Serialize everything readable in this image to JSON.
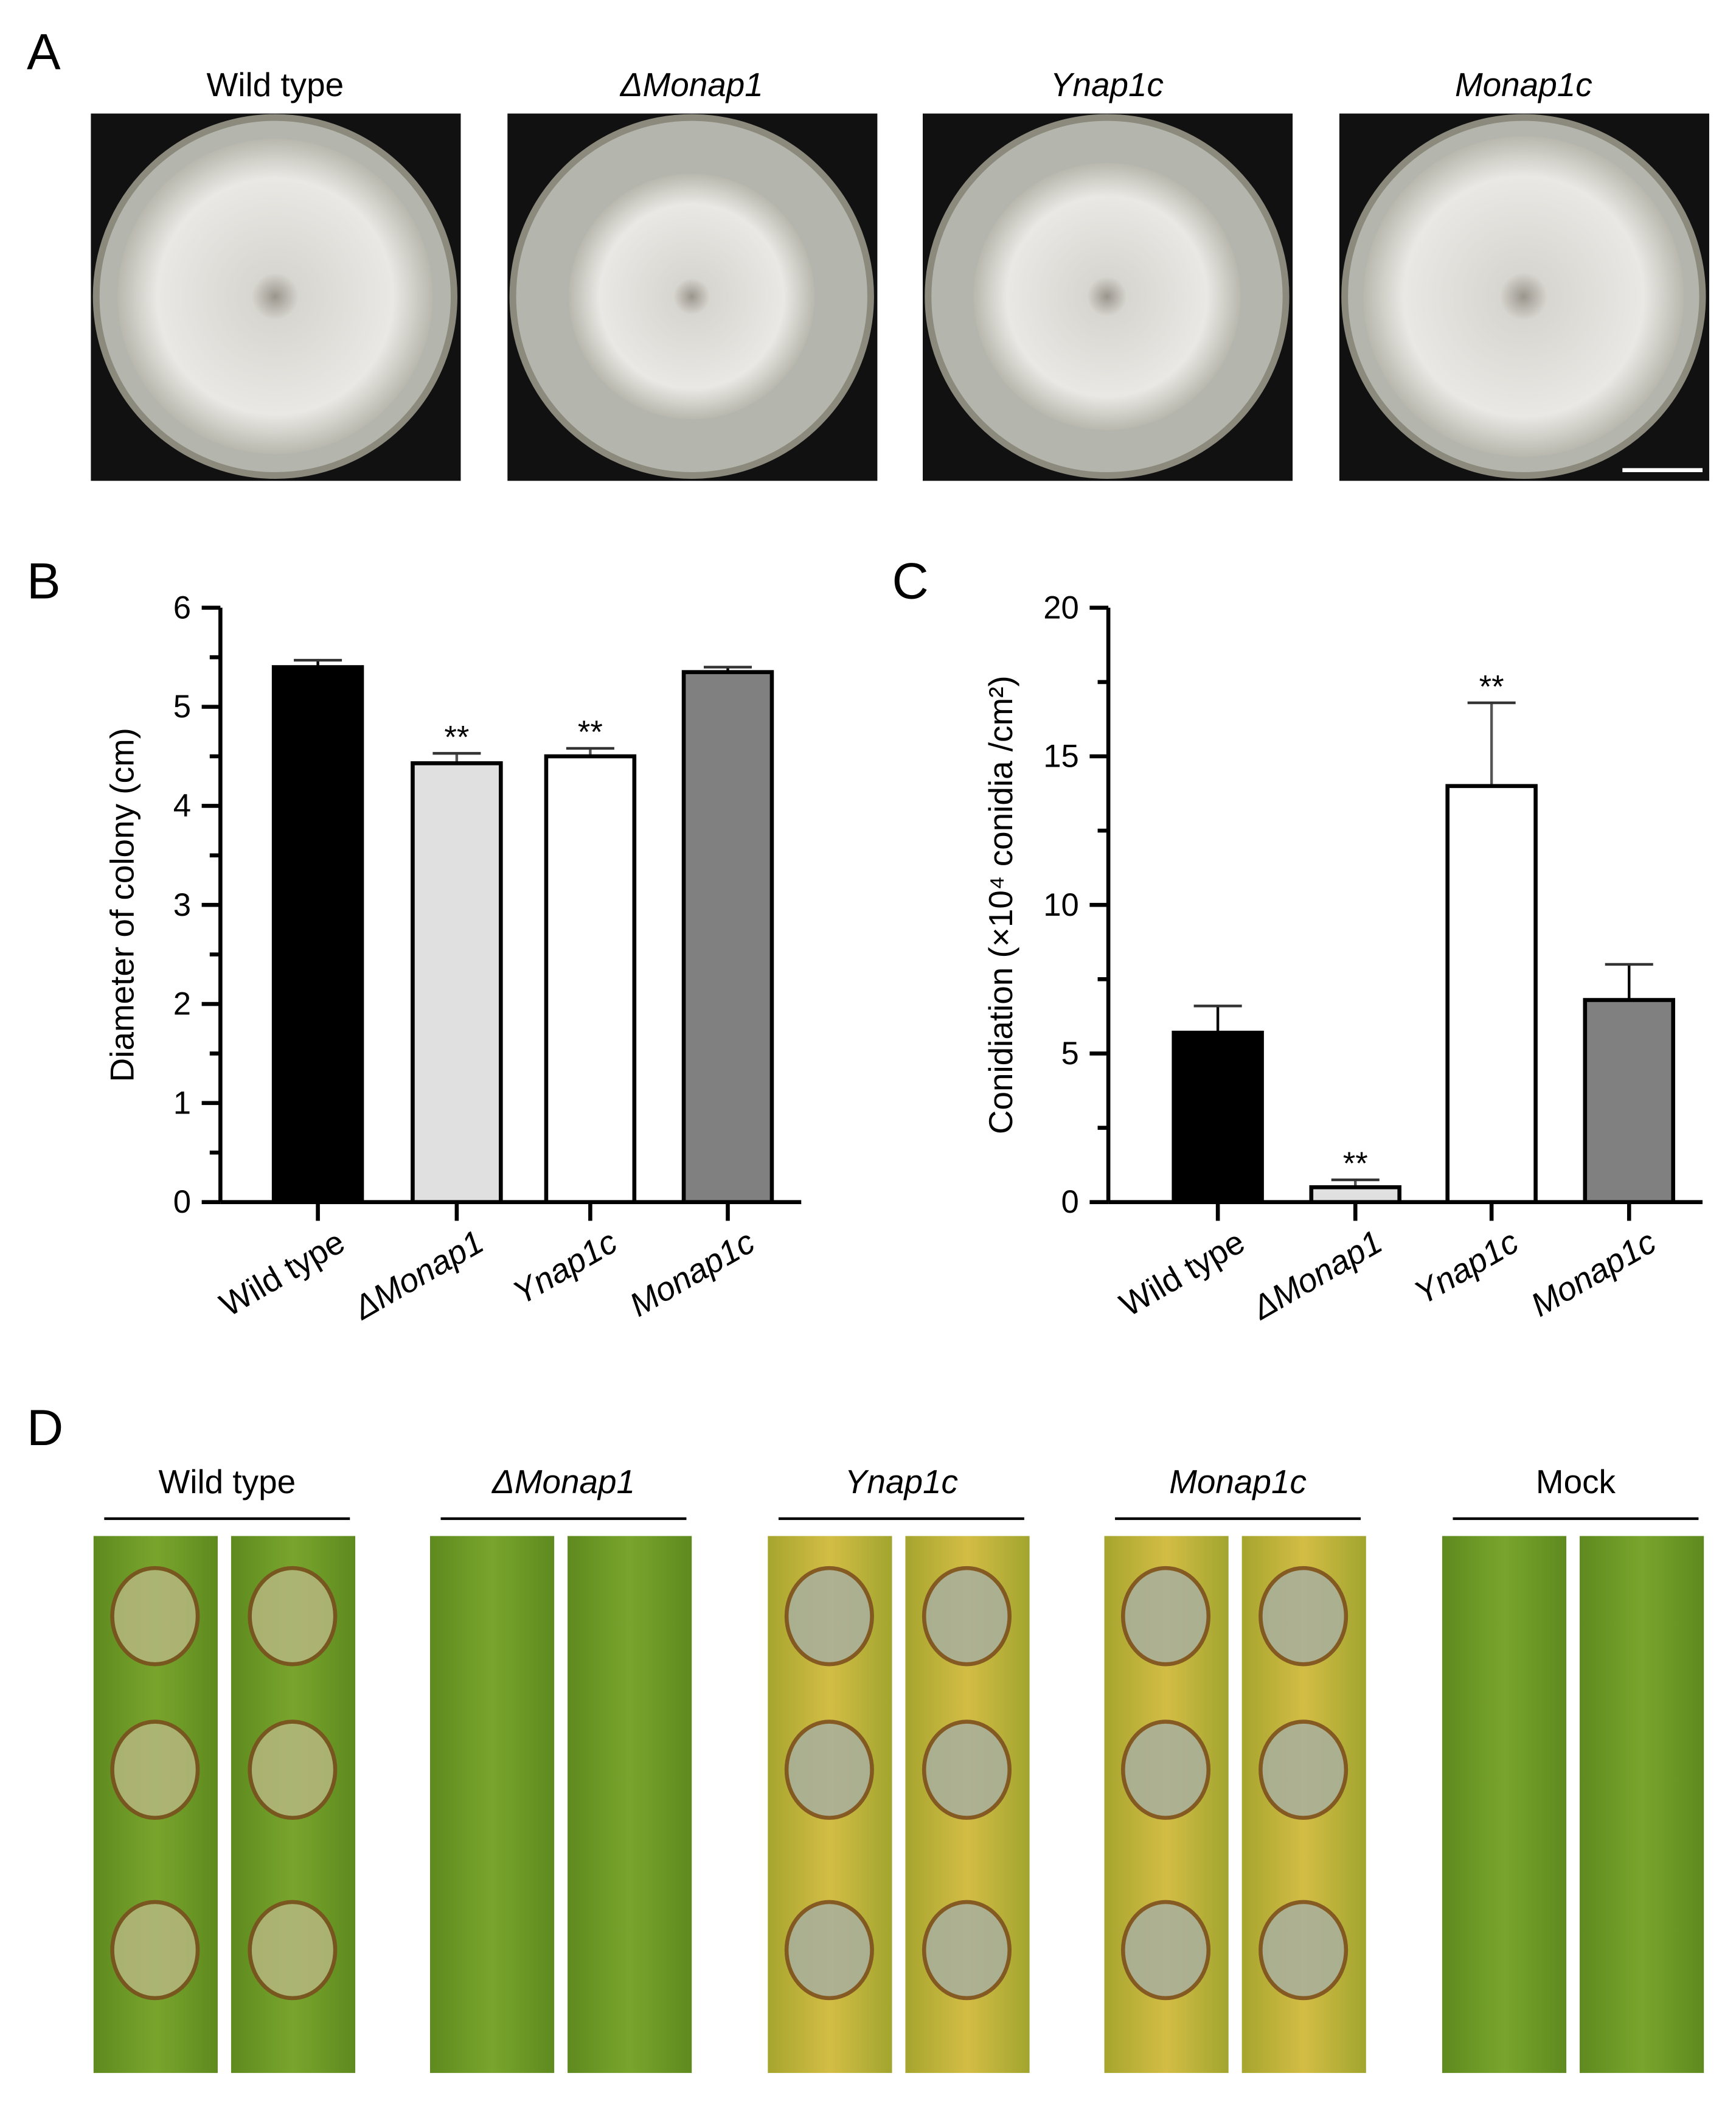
{
  "panels": {
    "A": {
      "label": "A",
      "titles": [
        "Wild type",
        "ΔMonap1",
        "Ynap1c",
        "Monap1c"
      ]
    },
    "B": {
      "label": "B"
    },
    "C": {
      "label": "C"
    },
    "D": {
      "label": "D",
      "titles": [
        "Wild type",
        "ΔMonap1",
        "Ynap1c",
        "Monap1c",
        "Mock"
      ]
    }
  },
  "chart_data": [
    {
      "type": "bar",
      "y_label": "Diameter of colony (cm)",
      "categories": [
        "Wild type",
        "ΔMonap1",
        "Ynap1c",
        "Monap1c"
      ],
      "values": [
        5.4,
        4.43,
        4.5,
        5.35
      ],
      "errors": [
        0.07,
        0.1,
        0.08,
        0.05
      ],
      "value_labels": [
        null,
        "**",
        "**",
        null
      ],
      "colors": [
        "#000000",
        "#e0e0e0",
        "#ffffff",
        "#808080"
      ],
      "ylim": [
        0,
        6
      ],
      "yticks": [
        0,
        1,
        2,
        3,
        4,
        5,
        6
      ],
      "yminorticks": [
        0.5,
        1.5,
        2.5,
        3.5,
        4.5,
        5.5
      ]
    },
    {
      "type": "bar",
      "y_label": "Conidiation (×10⁴ conidia /cm²)",
      "categories": [
        "Wild type",
        "ΔMonap1",
        "Ynap1c",
        "Monap1c"
      ],
      "values": [
        5.7,
        0.5,
        14,
        6.8
      ],
      "errors": [
        0.9,
        0.25,
        2.8,
        1.2
      ],
      "value_labels": [
        null,
        "**",
        "**",
        null
      ],
      "colors": [
        "#000000",
        "#e0e0e0",
        "#ffffff",
        "#808080"
      ],
      "ylim": [
        0,
        20
      ],
      "yticks": [
        0,
        5,
        10,
        15,
        20
      ],
      "yminorticks": [
        2.5,
        7.5,
        12.5,
        17.5
      ]
    }
  ]
}
